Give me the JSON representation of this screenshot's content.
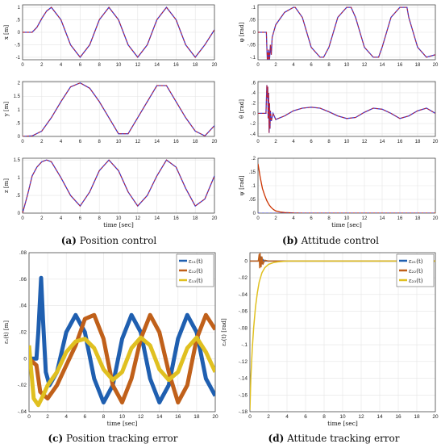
{
  "captions": {
    "a": {
      "letter": "(a)",
      "text": "Position control"
    },
    "b": {
      "letter": "(b)",
      "text": "Attitude control"
    },
    "c": {
      "letter": "(c)",
      "text": "Position tracking error"
    },
    "d": {
      "letter": "(d)",
      "text": "Attitude tracking error"
    }
  },
  "colors": {
    "actual": "#3a3ad6",
    "reference": "#cc2222",
    "e1": "#1f5fb0",
    "e2": "#c0601a",
    "e3": "#e0c020",
    "psi": "#cc3300"
  },
  "chart_data": [
    {
      "id": "x",
      "type": "line",
      "xlabel": "",
      "ylabel": "x [m]",
      "xlim": [
        0,
        20
      ],
      "ylim": [
        -1.1,
        1.1
      ],
      "xticks": [
        0,
        2,
        4,
        6,
        8,
        10,
        12,
        14,
        16,
        18,
        20
      ],
      "yticks": [
        -1,
        -0.5,
        0,
        0.5,
        1
      ],
      "series": [
        {
          "kind": "actual",
          "x": [
            0,
            1,
            1.5,
            2,
            2.5,
            3,
            4,
            5,
            6,
            7,
            8,
            9,
            10,
            11,
            12,
            13,
            14,
            15,
            16,
            17,
            18,
            19,
            20
          ],
          "y": [
            0,
            0,
            0.2,
            0.55,
            0.85,
            1,
            0.5,
            -0.5,
            -1,
            -0.5,
            0.5,
            1,
            0.5,
            -0.5,
            -1,
            -0.5,
            0.5,
            1,
            0.5,
            -0.5,
            -1,
            -0.5,
            0.1
          ]
        }
      ]
    },
    {
      "id": "y",
      "type": "line",
      "xlabel": "",
      "ylabel": "y [m]",
      "xlim": [
        0,
        20
      ],
      "ylim": [
        0,
        2.05
      ],
      "xticks": [
        0,
        2,
        4,
        6,
        8,
        10,
        12,
        14,
        16,
        18,
        20
      ],
      "yticks": [
        0,
        0.5,
        1,
        1.5,
        2
      ],
      "series": [
        {
          "kind": "actual",
          "x": [
            0,
            1,
            2,
            3,
            4,
            5,
            6,
            7,
            8,
            9,
            10,
            11,
            12,
            13,
            14,
            15,
            16,
            17,
            18,
            19,
            20
          ],
          "y": [
            0,
            0.02,
            0.2,
            0.7,
            1.3,
            1.85,
            2,
            1.8,
            1.3,
            0.7,
            0.1,
            0.1,
            0.7,
            1.3,
            1.9,
            1.9,
            1.3,
            0.7,
            0.2,
            0.02,
            0.4
          ]
        }
      ]
    },
    {
      "id": "z",
      "type": "line",
      "xlabel": "time [sec]",
      "ylabel": "z [m]",
      "xlim": [
        0,
        20
      ],
      "ylim": [
        0,
        1.55
      ],
      "xticks": [
        0,
        2,
        4,
        6,
        8,
        10,
        12,
        14,
        16,
        18,
        20
      ],
      "yticks": [
        0,
        0.5,
        1,
        1.5
      ],
      "series": [
        {
          "kind": "actual",
          "x": [
            0,
            0.5,
            1,
            1.5,
            2,
            2.5,
            3,
            4,
            5,
            6,
            7,
            8,
            9,
            10,
            11,
            12,
            13,
            14,
            15,
            16,
            17,
            18,
            19,
            20
          ],
          "y": [
            0,
            0.5,
            1.05,
            1.3,
            1.45,
            1.5,
            1.45,
            1.0,
            0.5,
            0.2,
            0.6,
            1.2,
            1.5,
            1.2,
            0.6,
            0.2,
            0.5,
            1.05,
            1.5,
            1.3,
            0.7,
            0.2,
            0.4,
            1.05
          ]
        }
      ]
    },
    {
      "id": "phi",
      "type": "line",
      "xlabel": "",
      "ylabel": "φ [rad]",
      "xlim": [
        0,
        20
      ],
      "ylim": [
        -0.11,
        0.11
      ],
      "xticks": [
        0,
        2,
        4,
        6,
        8,
        10,
        12,
        14,
        16,
        18,
        20
      ],
      "yticks": [
        -0.1,
        -0.05,
        0,
        0.05,
        0.1
      ],
      "series": [
        {
          "kind": "actual",
          "x": [
            0,
            0.95,
            1,
            1.05,
            1.1,
            1.15,
            1.2,
            1.3,
            1.4,
            1.5,
            1.6,
            2,
            3,
            4,
            4.2,
            5,
            6,
            7,
            7.4,
            8,
            9,
            10,
            10.5,
            11,
            12,
            13,
            13.6,
            14,
            15,
            16,
            16.8,
            17,
            18,
            19,
            20
          ],
          "y": [
            0,
            0,
            -0.06,
            -0.11,
            -0.08,
            -0.12,
            -0.07,
            -0.11,
            -0.05,
            -0.09,
            -0.02,
            0.03,
            0.08,
            0.1,
            0.1,
            0.06,
            -0.06,
            -0.1,
            -0.1,
            -0.06,
            0.06,
            0.1,
            0.1,
            0.06,
            -0.06,
            -0.1,
            -0.1,
            -0.06,
            0.06,
            0.1,
            0.1,
            0.06,
            -0.06,
            -0.1,
            -0.09
          ]
        }
      ]
    },
    {
      "id": "theta",
      "type": "line",
      "xlabel": "",
      "ylabel": "θ [rad]",
      "xlim": [
        0,
        20
      ],
      "ylim": [
        -0.45,
        0.62
      ],
      "xticks": [
        0,
        2,
        4,
        6,
        8,
        10,
        12,
        14,
        16,
        18,
        20
      ],
      "yticks": [
        -0.4,
        -0.2,
        0,
        0.2,
        0.4,
        0.6
      ],
      "series": [
        {
          "kind": "actual",
          "x": [
            0,
            0.9,
            1,
            1.05,
            1.1,
            1.15,
            1.2,
            1.25,
            1.3,
            1.35,
            1.4,
            1.5,
            1.7,
            2,
            3,
            4,
            5,
            6,
            7,
            8,
            9,
            10,
            11,
            12,
            13,
            14,
            15,
            16,
            17,
            18,
            19,
            20
          ],
          "y": [
            0,
            0,
            0.55,
            0.3,
            0.52,
            -0.1,
            0.4,
            -0.38,
            0.2,
            -0.3,
            0.05,
            -0.15,
            0,
            -0.12,
            -0.05,
            0.05,
            0.1,
            0.12,
            0.1,
            0.03,
            -0.05,
            -0.1,
            -0.08,
            0.02,
            0.1,
            0.08,
            0.0,
            -0.1,
            -0.05,
            0.05,
            0.1,
            0.0
          ]
        }
      ]
    },
    {
      "id": "psi",
      "type": "line",
      "xlabel": "time [sec]",
      "ylabel": "ψ [rad]",
      "xlim": [
        0,
        20
      ],
      "ylim": [
        0,
        0.2
      ],
      "xticks": [
        0,
        2,
        4,
        6,
        8,
        10,
        12,
        14,
        16,
        18,
        20
      ],
      "yticks": [
        0,
        0.05,
        0.1,
        0.15,
        0.2
      ],
      "series": [
        {
          "kind": "psi",
          "x": [
            0,
            0.25,
            0.5,
            0.75,
            1,
            1.25,
            1.5,
            1.75,
            2,
            2.5,
            3,
            4,
            5,
            20
          ],
          "y": [
            0.18,
            0.13,
            0.09,
            0.065,
            0.045,
            0.03,
            0.02,
            0.013,
            0.008,
            0.004,
            0.002,
            0.0005,
            0,
            0
          ]
        }
      ]
    },
    {
      "id": "e1",
      "type": "line",
      "xlabel": "time [sec]",
      "ylabel": "ε₁(t) [m]",
      "xlim": [
        0,
        20
      ],
      "ylim": [
        -0.04,
        0.08
      ],
      "xticks": [
        0,
        2,
        4,
        6,
        8,
        10,
        12,
        14,
        16,
        18,
        20
      ],
      "yticks": [
        -0.04,
        -0.02,
        0,
        0.02,
        0.04,
        0.06,
        0.08
      ],
      "legend": [
        "ε₁₁(t)",
        "ε₁₂(t)",
        "ε₁₃(t)"
      ],
      "series": [
        {
          "kind": "e1",
          "x": [
            0,
            0.8,
            1,
            1.3,
            1.5,
            1.8,
            2.2,
            3,
            4,
            5,
            6,
            7,
            8,
            9,
            10,
            11,
            12,
            13,
            14,
            15,
            16,
            17,
            18,
            19,
            20
          ],
          "y": [
            0,
            0,
            0.02,
            0.061,
            0.03,
            -0.01,
            -0.02,
            -0.01,
            0.02,
            0.033,
            0.02,
            -0.015,
            -0.033,
            -0.02,
            0.015,
            0.033,
            0.02,
            -0.015,
            -0.033,
            -0.02,
            0.015,
            0.033,
            0.02,
            -0.015,
            -0.028
          ]
        },
        {
          "kind": "e2",
          "x": [
            0,
            0.8,
            1.2,
            2,
            3,
            4,
            5,
            6,
            7,
            8,
            9,
            10,
            11,
            12,
            13,
            14,
            15,
            16,
            17,
            18,
            19,
            20
          ],
          "y": [
            0,
            -0.005,
            -0.025,
            -0.03,
            -0.02,
            -0.005,
            0.01,
            0.03,
            0.033,
            0.015,
            -0.02,
            -0.033,
            -0.015,
            0.015,
            0.033,
            0.02,
            -0.01,
            -0.033,
            -0.02,
            0.015,
            0.033,
            0.022
          ]
        },
        {
          "kind": "e3",
          "x": [
            0,
            0.5,
            1,
            1.5,
            2,
            3,
            4,
            5,
            6,
            7,
            8,
            9,
            10,
            11,
            12,
            13,
            14,
            15,
            16,
            17,
            18,
            19,
            20
          ],
          "y": [
            0.01,
            -0.03,
            -0.035,
            -0.028,
            -0.02,
            -0.01,
            0.005,
            0.013,
            0.015,
            0.008,
            -0.008,
            -0.016,
            -0.01,
            0.008,
            0.016,
            0.01,
            -0.008,
            -0.016,
            -0.01,
            0.008,
            0.016,
            0.005,
            -0.01
          ]
        }
      ]
    },
    {
      "id": "e2",
      "type": "line",
      "xlabel": "time [sec]",
      "ylabel": "ε₂(t) [rad]",
      "xlim": [
        0,
        20
      ],
      "ylim": [
        -0.18,
        0.01
      ],
      "xticks": [
        0,
        2,
        4,
        6,
        8,
        10,
        12,
        14,
        16,
        18,
        20
      ],
      "yticks": [
        -0.18,
        -0.16,
        -0.14,
        -0.12,
        -0.1,
        -0.08,
        -0.06,
        -0.04,
        -0.02,
        0
      ],
      "legend": [
        "ε₂₁(t)",
        "ε₂₂(t)",
        "ε₂₃(t)"
      ],
      "series": [
        {
          "kind": "e1",
          "x": [
            0,
            0.9,
            1,
            1.1,
            1.2,
            1.3,
            1.4,
            1.5,
            2,
            20
          ],
          "y": [
            0,
            0,
            0.004,
            -0.004,
            0.005,
            -0.003,
            0.002,
            0,
            0,
            0
          ]
        },
        {
          "kind": "e2",
          "x": [
            0,
            0.9,
            1,
            1.05,
            1.1,
            1.2,
            1.3,
            1.4,
            1.6,
            2,
            20
          ],
          "y": [
            0,
            0,
            0.008,
            -0.008,
            0.009,
            -0.007,
            0.005,
            -0.004,
            0.001,
            0,
            0
          ]
        },
        {
          "kind": "e3",
          "x": [
            0,
            0.1,
            0.25,
            0.4,
            0.6,
            0.8,
            1,
            1.3,
            1.6,
            2,
            2.5,
            3,
            4,
            20
          ],
          "y": [
            -0.178,
            -0.14,
            -0.105,
            -0.08,
            -0.055,
            -0.038,
            -0.025,
            -0.014,
            -0.008,
            -0.004,
            -0.002,
            -0.001,
            0,
            0
          ]
        }
      ]
    }
  ]
}
